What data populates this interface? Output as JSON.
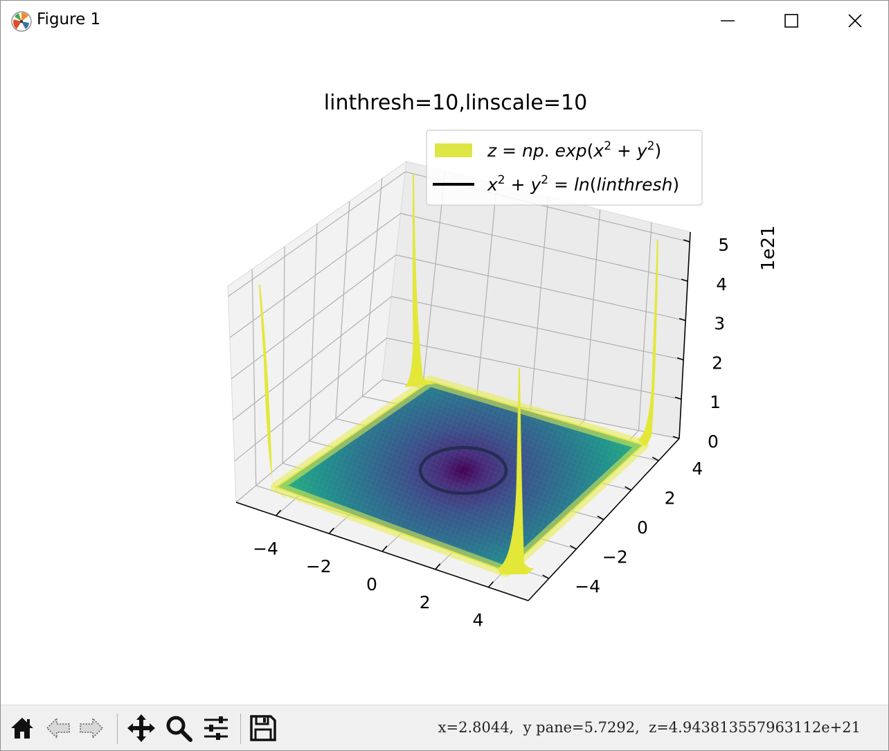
{
  "window": {
    "title": "Figure 1",
    "icons": {
      "app": "matplotlib-logo-icon",
      "minimize": "minimize-icon",
      "maximize": "maximize-icon",
      "close": "close-icon"
    }
  },
  "chart_data": {
    "type": "surface3d",
    "title": "linthresh=10,linscale=10",
    "surface": {
      "formula": "z = np.exp(x^2 + y^2)",
      "colormap": "viridis",
      "x_range": [
        -5,
        5
      ],
      "y_range": [
        -5,
        5
      ]
    },
    "x_ticks": [
      "−4",
      "−2",
      "0",
      "2",
      "4"
    ],
    "y_ticks": [
      "−4",
      "−2",
      "0",
      "2",
      "4"
    ],
    "z_ticks": [
      "0",
      "1",
      "2",
      "3",
      "4",
      "5"
    ],
    "z_offset_label": "1e21",
    "zlim": [
      0,
      5
    ],
    "contour": {
      "level_equation": "x^2 + y^2 = ln(linthresh)",
      "color": "#1f2a4a"
    },
    "legend": {
      "position": "upper-right",
      "entries": [
        {
          "label_parts": [
            "z",
            " = ",
            "np",
            ". ",
            "exp",
            "(",
            "x",
            "2",
            " + ",
            "y",
            "2",
            ")"
          ],
          "swatch": "patch",
          "color": "#dde645"
        },
        {
          "label_parts": [
            "x",
            "2",
            " + ",
            "y",
            "2",
            " = ",
            "ln",
            "(",
            "linthresh",
            ")"
          ],
          "swatch": "line",
          "color": "#000000"
        }
      ]
    },
    "grid": true
  },
  "toolbar": {
    "buttons": [
      "home-icon",
      "back-icon",
      "forward-icon",
      "pan-icon",
      "zoom-icon",
      "configure-subplots-icon",
      "save-icon"
    ],
    "coordinates": "x=2.8044,  y pane=5.7292,  z=4.943813557963112e+21"
  }
}
